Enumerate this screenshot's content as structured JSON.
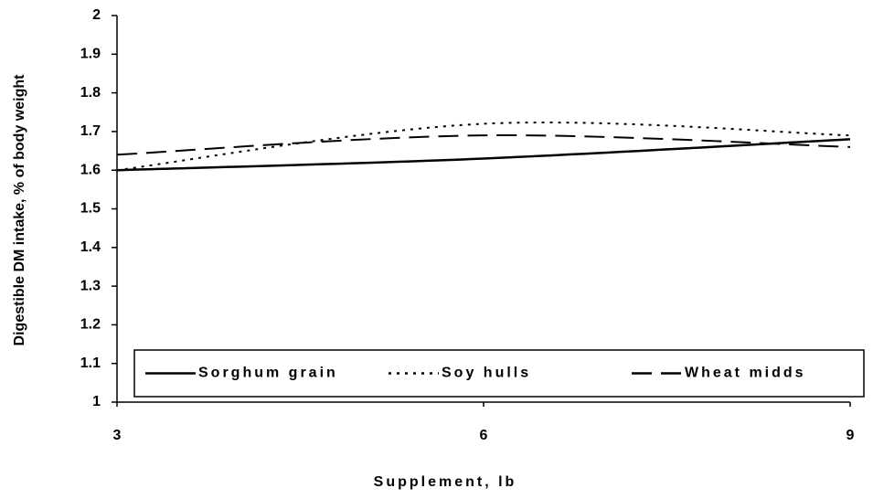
{
  "chart_data": {
    "type": "line",
    "xlabel": "Supplement, lb",
    "ylabel": "Digestible DM intake, % of body weight",
    "x": [
      3,
      6,
      9
    ],
    "xlim": [
      3,
      9
    ],
    "xticks": [
      3,
      6,
      9
    ],
    "ylim": [
      1,
      2
    ],
    "yticks": [
      1,
      1.1,
      1.2,
      1.3,
      1.4,
      1.5,
      1.6,
      1.7,
      1.8,
      1.9,
      2
    ],
    "legend": "lower center",
    "smooth": true,
    "series": [
      {
        "name": "Sorghum grain",
        "color": "#000000",
        "style": "solid",
        "values": [
          1.6,
          1.63,
          1.68
        ]
      },
      {
        "name": "Soy hulls",
        "color": "#000000",
        "style": "dotted",
        "values": [
          1.6,
          1.72,
          1.69
        ]
      },
      {
        "name": "Wheat midds",
        "color": "#000000",
        "style": "dashed",
        "values": [
          1.64,
          1.69,
          1.66
        ]
      }
    ]
  }
}
